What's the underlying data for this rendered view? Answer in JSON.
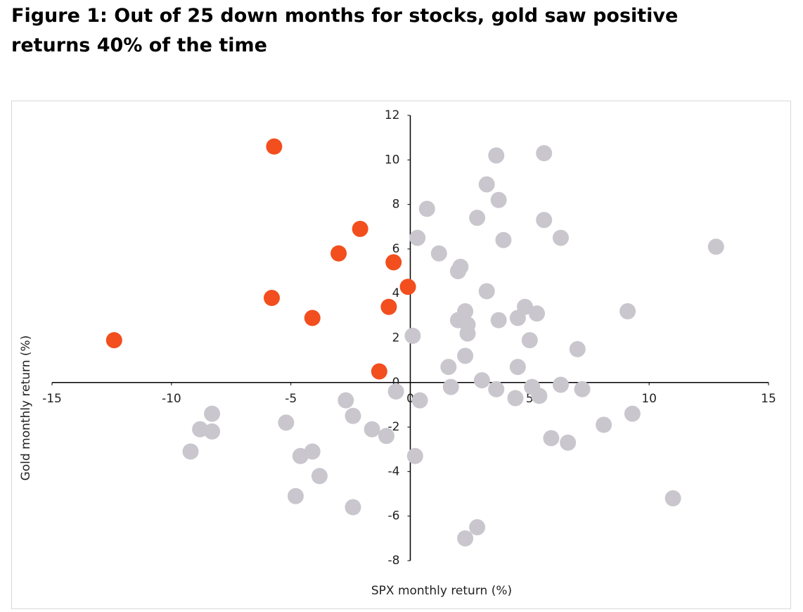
{
  "chart_data": {
    "type": "scatter",
    "title": "Figure 1: Out of 25 down months for stocks, gold saw positive returns 40% of the time",
    "x_label": "SPX monthly return (%)",
    "y_label": "Gold monthly return (%)",
    "xlim": [
      -15,
      15
    ],
    "xticks": [
      -15,
      -10,
      -5,
      0,
      5,
      10,
      15
    ],
    "ylim": [
      -8,
      12
    ],
    "yticks": [
      -8,
      -6,
      -4,
      -2,
      0,
      2,
      4,
      6,
      8,
      10,
      12
    ],
    "series": [
      {
        "color": "#c9c6cd",
        "x": [
          3.6,
          5.6,
          3.2,
          3.7,
          0.7,
          2.8,
          5.6,
          0.3,
          3.9,
          6.3,
          12.8,
          1.2,
          2.1,
          2.0,
          3.2,
          2.3,
          4.8,
          5.3,
          2.0,
          2.4,
          3.7,
          4.5,
          2.4,
          9.1,
          5.0,
          0.1,
          7.0,
          2.3,
          1.6,
          4.5,
          3.0,
          1.7,
          3.6,
          -0.6,
          5.1,
          6.3,
          7.2,
          5.4,
          4.4,
          0.4,
          -2.7,
          -8.3,
          -5.2,
          -8.8,
          -8.3,
          -2.4,
          -1.6,
          -1.0,
          9.3,
          8.1,
          5.9,
          6.6,
          -9.2,
          -4.6,
          -4.1,
          0.2,
          -3.8,
          -4.8,
          -2.4,
          11.0,
          2.8,
          2.3
        ],
        "y": [
          10.2,
          10.3,
          8.9,
          8.2,
          7.8,
          7.4,
          7.3,
          6.5,
          6.4,
          6.5,
          6.1,
          5.8,
          5.2,
          5.0,
          4.1,
          3.2,
          3.4,
          3.1,
          2.8,
          2.6,
          2.8,
          2.9,
          2.2,
          3.2,
          1.9,
          2.1,
          1.5,
          1.2,
          0.7,
          0.7,
          0.1,
          -0.2,
          -0.3,
          -0.4,
          -0.2,
          -0.1,
          -0.3,
          -0.6,
          -0.7,
          -0.8,
          -0.8,
          -1.4,
          -1.8,
          -2.1,
          -2.2,
          -1.5,
          -2.1,
          -2.4,
          -1.4,
          -1.9,
          -2.5,
          -2.7,
          -3.1,
          -3.3,
          -3.1,
          -3.3,
          -4.2,
          -5.1,
          -5.6,
          -5.2,
          -6.5,
          -7.0
        ]
      },
      {
        "color": "#f24e1e",
        "x": [
          -5.7,
          -2.1,
          -3.0,
          -0.7,
          -0.1,
          -0.9,
          -5.8,
          -4.1,
          -12.4,
          -1.3
        ],
        "y": [
          10.6,
          6.9,
          5.8,
          5.4,
          4.3,
          3.4,
          3.8,
          2.9,
          1.9,
          0.5
        ]
      }
    ]
  }
}
